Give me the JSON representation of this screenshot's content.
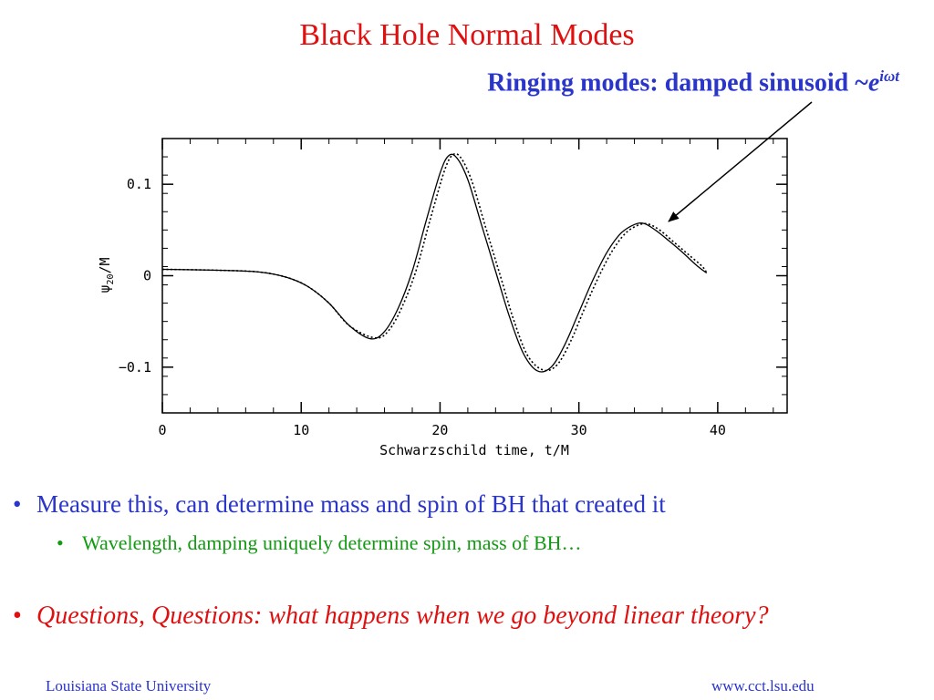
{
  "slide": {
    "title": "Black Hole Normal Modes",
    "subtitle_prefix": "Ringing modes:  damped sinusoid ~",
    "subtitle_base": "e",
    "subtitle_exponent": "iωt"
  },
  "bullets": [
    {
      "level": 1,
      "text": "Measure this, can determine mass and spin of BH that created it",
      "color": "#2a35c9"
    },
    {
      "level": 2,
      "text": "Wavelength, damping uniquely determine spin, mass of BH…",
      "color": "#129a12"
    },
    {
      "level": 1,
      "text": "Questions, Questions:  what happens when we go beyond linear theory?",
      "color": "#e01010",
      "italic": true
    }
  ],
  "bullet_glyph": "•",
  "footer": {
    "left": "Louisiana State University",
    "right": "www.cct.lsu.edu"
  },
  "colors": {
    "title": "#e01010",
    "subtitle": "#2a35c9",
    "arrow": "#000000"
  },
  "chart_data": {
    "type": "line",
    "xlabel": "Schwarzschild time, t/M",
    "ylabel": "ψ20/M",
    "ylabel_main": "ψ",
    "ylabel_sub": "20",
    "ylabel_tail": "/M",
    "xlim": [
      0,
      45
    ],
    "ylim": [
      -0.15,
      0.15
    ],
    "xticks": [
      0,
      10,
      20,
      30,
      40
    ],
    "yticks": [
      0.1,
      0,
      -0.1
    ],
    "xtick_labels": [
      "0",
      "10",
      "20",
      "30",
      "40"
    ],
    "ytick_labels": [
      "0.1",
      "0",
      "−0.1"
    ],
    "grid": false,
    "series": [
      {
        "style": "solid",
        "x": [
          0,
          4,
          7,
          9,
          10.5,
          12,
          13.5,
          15,
          16,
          17,
          18,
          19,
          20,
          20.6,
          21.2,
          22,
          23,
          24,
          25,
          26,
          27,
          28,
          29,
          30,
          31,
          32,
          33,
          34,
          34.7,
          35.5,
          36.5,
          37.5,
          38.5,
          39.2
        ],
        "y": [
          0.007,
          0.006,
          0.004,
          -0.002,
          -0.012,
          -0.03,
          -0.055,
          -0.069,
          -0.061,
          -0.035,
          0.005,
          0.06,
          0.112,
          0.131,
          0.129,
          0.105,
          0.055,
          0.005,
          -0.045,
          -0.085,
          -0.104,
          -0.1,
          -0.075,
          -0.04,
          -0.005,
          0.025,
          0.046,
          0.056,
          0.057,
          0.05,
          0.038,
          0.025,
          0.011,
          0.003
        ]
      },
      {
        "style": "dotted",
        "x": [
          0,
          4,
          7,
          9,
          10.5,
          12,
          13.5,
          15.3,
          16.3,
          17.3,
          18.3,
          19.3,
          20.3,
          20.9,
          21.5,
          22.3,
          23.3,
          24.3,
          25.3,
          26.3,
          27.4,
          28.4,
          29.4,
          30.4,
          31.4,
          32.4,
          33.4,
          34.4,
          35.1,
          35.9,
          36.9,
          37.9,
          38.9,
          39.2
        ],
        "y": [
          0.007,
          0.006,
          0.004,
          -0.002,
          -0.012,
          -0.03,
          -0.055,
          -0.068,
          -0.06,
          -0.033,
          0.007,
          0.062,
          0.114,
          0.132,
          0.129,
          0.103,
          0.052,
          0.002,
          -0.048,
          -0.087,
          -0.103,
          -0.098,
          -0.072,
          -0.036,
          -0.002,
          0.027,
          0.047,
          0.056,
          0.056,
          0.049,
          0.036,
          0.023,
          0.01,
          0.003
        ]
      }
    ]
  }
}
